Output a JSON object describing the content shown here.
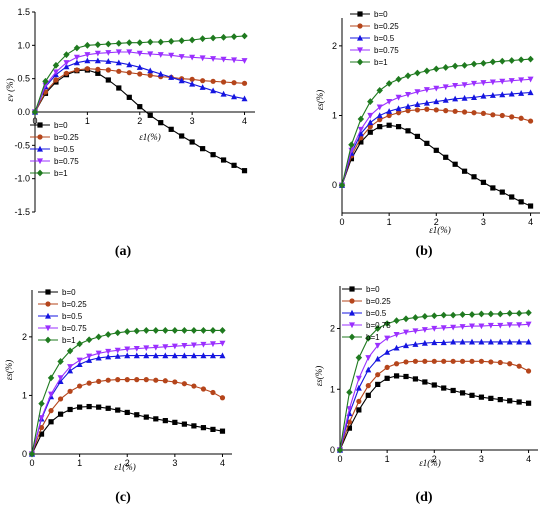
{
  "series_colors": [
    "#000000",
    "#b5451b",
    "#1515e0",
    "#9b30ff",
    "#1f7a1f"
  ],
  "series_markers": [
    "square",
    "circle",
    "triangle-up",
    "triangle-down",
    "diamond"
  ],
  "chart_data": [
    {
      "panel": "(a)",
      "type": "line",
      "xlabel": "ε1(%)",
      "ylabel": "εv (%)",
      "xlim": [
        0,
        4.2
      ],
      "ylim": [
        -1.5,
        1.5
      ],
      "xticks": [
        "0",
        "1",
        "2",
        "3",
        "4"
      ],
      "yticks": [
        "1.5",
        "1.0",
        "0.5",
        "0.0",
        "-0.5",
        "-1.0",
        "-1.5"
      ],
      "legend_position": "lower-left",
      "series": [
        {
          "name": "b=0",
          "x": [
            0,
            0.2,
            0.4,
            0.6,
            0.8,
            1.0,
            1.2,
            1.4,
            1.6,
            1.8,
            2.0,
            2.2,
            2.4,
            2.6,
            2.8,
            3.0,
            3.2,
            3.4,
            3.6,
            3.8,
            4.0
          ],
          "y": [
            0,
            0.28,
            0.45,
            0.56,
            0.62,
            0.63,
            0.58,
            0.48,
            0.36,
            0.22,
            0.08,
            -0.05,
            -0.16,
            -0.26,
            -0.36,
            -0.45,
            -0.55,
            -0.64,
            -0.72,
            -0.8,
            -0.88
          ]
        },
        {
          "name": "b=0.25",
          "x": [
            0,
            0.2,
            0.4,
            0.6,
            0.8,
            1.0,
            1.2,
            1.4,
            1.6,
            1.8,
            2.0,
            2.2,
            2.4,
            2.6,
            2.8,
            3.0,
            3.2,
            3.4,
            3.6,
            3.8,
            4.0
          ],
          "y": [
            0,
            0.3,
            0.48,
            0.58,
            0.63,
            0.65,
            0.64,
            0.63,
            0.61,
            0.59,
            0.57,
            0.55,
            0.53,
            0.52,
            0.5,
            0.49,
            0.47,
            0.46,
            0.45,
            0.44,
            0.43
          ]
        },
        {
          "name": "b=0.5",
          "x": [
            0,
            0.2,
            0.4,
            0.6,
            0.8,
            1.0,
            1.2,
            1.4,
            1.6,
            1.8,
            2.0,
            2.2,
            2.4,
            2.6,
            2.8,
            3.0,
            3.2,
            3.4,
            3.6,
            3.8,
            4.0
          ],
          "y": [
            0,
            0.38,
            0.56,
            0.68,
            0.74,
            0.77,
            0.77,
            0.76,
            0.74,
            0.71,
            0.67,
            0.62,
            0.57,
            0.52,
            0.47,
            0.42,
            0.37,
            0.32,
            0.27,
            0.23,
            0.2
          ]
        },
        {
          "name": "b=0.75",
          "x": [
            0,
            0.2,
            0.4,
            0.6,
            0.8,
            1.0,
            1.2,
            1.4,
            1.6,
            1.8,
            2.0,
            2.2,
            2.4,
            2.6,
            2.8,
            3.0,
            3.2,
            3.4,
            3.6,
            3.8,
            4.0
          ],
          "y": [
            0,
            0.4,
            0.6,
            0.74,
            0.82,
            0.86,
            0.88,
            0.89,
            0.9,
            0.9,
            0.88,
            0.87,
            0.86,
            0.85,
            0.83,
            0.82,
            0.81,
            0.8,
            0.79,
            0.78,
            0.77
          ]
        },
        {
          "name": "b=1",
          "x": [
            0,
            0.2,
            0.4,
            0.6,
            0.8,
            1.0,
            1.2,
            1.4,
            1.6,
            1.8,
            2.0,
            2.2,
            2.4,
            2.6,
            2.8,
            3.0,
            3.2,
            3.4,
            3.6,
            3.8,
            4.0
          ],
          "y": [
            0,
            0.46,
            0.7,
            0.86,
            0.96,
            1.0,
            1.01,
            1.02,
            1.03,
            1.04,
            1.04,
            1.05,
            1.05,
            1.06,
            1.07,
            1.08,
            1.1,
            1.11,
            1.12,
            1.13,
            1.14
          ]
        }
      ]
    },
    {
      "panel": "(b)",
      "type": "line",
      "xlabel": "ε1(%)",
      "ylabel": "εs(%)",
      "xlim": [
        0,
        4.2
      ],
      "ylim": [
        -0.4,
        2.4
      ],
      "xticks": [
        "0",
        "1",
        "2",
        "3",
        "4"
      ],
      "yticks": [
        "0",
        "1",
        "2"
      ],
      "legend_position": "top-left",
      "series": [
        {
          "name": "b=0",
          "x": [
            0,
            0.2,
            0.4,
            0.6,
            0.8,
            1.0,
            1.2,
            1.4,
            1.6,
            1.8,
            2.0,
            2.2,
            2.4,
            2.6,
            2.8,
            3.0,
            3.2,
            3.4,
            3.6,
            3.8,
            4.0
          ],
          "y": [
            0,
            0.38,
            0.62,
            0.76,
            0.84,
            0.86,
            0.84,
            0.78,
            0.7,
            0.6,
            0.5,
            0.4,
            0.3,
            0.2,
            0.12,
            0.04,
            -0.04,
            -0.1,
            -0.17,
            -0.24,
            -0.3
          ]
        },
        {
          "name": "b=0.25",
          "x": [
            0,
            0.2,
            0.4,
            0.6,
            0.8,
            1.0,
            1.2,
            1.4,
            1.6,
            1.8,
            2.0,
            2.2,
            2.4,
            2.6,
            2.8,
            3.0,
            3.2,
            3.4,
            3.6,
            3.8,
            4.0
          ],
          "y": [
            0,
            0.42,
            0.68,
            0.84,
            0.94,
            1.0,
            1.04,
            1.07,
            1.08,
            1.09,
            1.08,
            1.07,
            1.06,
            1.05,
            1.04,
            1.03,
            1.01,
            1.0,
            0.98,
            0.96,
            0.92
          ]
        },
        {
          "name": "b=0.5",
          "x": [
            0,
            0.2,
            0.4,
            0.6,
            0.8,
            1.0,
            1.2,
            1.4,
            1.6,
            1.8,
            2.0,
            2.2,
            2.4,
            2.6,
            2.8,
            3.0,
            3.2,
            3.4,
            3.6,
            3.8,
            4.0
          ],
          "y": [
            0,
            0.46,
            0.74,
            0.9,
            1.0,
            1.06,
            1.1,
            1.13,
            1.16,
            1.18,
            1.2,
            1.22,
            1.24,
            1.25,
            1.26,
            1.28,
            1.29,
            1.3,
            1.31,
            1.32,
            1.33
          ]
        },
        {
          "name": "b=0.75",
          "x": [
            0,
            0.2,
            0.4,
            0.6,
            0.8,
            1.0,
            1.2,
            1.4,
            1.6,
            1.8,
            2.0,
            2.2,
            2.4,
            2.6,
            2.8,
            3.0,
            3.2,
            3.4,
            3.6,
            3.8,
            4.0
          ],
          "y": [
            0,
            0.5,
            0.8,
            1.0,
            1.12,
            1.2,
            1.26,
            1.3,
            1.34,
            1.37,
            1.39,
            1.41,
            1.43,
            1.44,
            1.46,
            1.47,
            1.48,
            1.49,
            1.5,
            1.51,
            1.52
          ]
        },
        {
          "name": "b=1",
          "x": [
            0,
            0.2,
            0.4,
            0.6,
            0.8,
            1.0,
            1.2,
            1.4,
            1.6,
            1.8,
            2.0,
            2.2,
            2.4,
            2.6,
            2.8,
            3.0,
            3.2,
            3.4,
            3.6,
            3.8,
            4.0
          ],
          "y": [
            0,
            0.58,
            0.95,
            1.2,
            1.36,
            1.46,
            1.52,
            1.57,
            1.61,
            1.64,
            1.67,
            1.69,
            1.71,
            1.72,
            1.74,
            1.75,
            1.77,
            1.78,
            1.79,
            1.8,
            1.81
          ]
        }
      ]
    },
    {
      "panel": "(c)",
      "type": "line",
      "xlabel": "ε1(%)",
      "ylabel": "εs(%)",
      "xlim": [
        0,
        4.2
      ],
      "ylim": [
        0,
        2.8
      ],
      "xticks": [
        "0",
        "1",
        "2",
        "3",
        "4"
      ],
      "yticks": [
        "0",
        "1",
        "2"
      ],
      "legend_position": "top-left",
      "series": [
        {
          "name": "b=0",
          "x": [
            0,
            0.2,
            0.4,
            0.6,
            0.8,
            1.0,
            1.2,
            1.4,
            1.6,
            1.8,
            2.0,
            2.2,
            2.4,
            2.6,
            2.8,
            3.0,
            3.2,
            3.4,
            3.6,
            3.8,
            4.0
          ],
          "y": [
            0,
            0.34,
            0.55,
            0.68,
            0.76,
            0.8,
            0.81,
            0.8,
            0.78,
            0.75,
            0.71,
            0.67,
            0.63,
            0.6,
            0.57,
            0.54,
            0.51,
            0.48,
            0.45,
            0.42,
            0.39
          ]
        },
        {
          "name": "b=0.25",
          "x": [
            0,
            0.2,
            0.4,
            0.6,
            0.8,
            1.0,
            1.2,
            1.4,
            1.6,
            1.8,
            2.0,
            2.2,
            2.4,
            2.6,
            2.8,
            3.0,
            3.2,
            3.4,
            3.6,
            3.8,
            4.0
          ],
          "y": [
            0,
            0.45,
            0.74,
            0.94,
            1.07,
            1.16,
            1.21,
            1.24,
            1.26,
            1.27,
            1.27,
            1.27,
            1.27,
            1.26,
            1.25,
            1.23,
            1.2,
            1.16,
            1.11,
            1.05,
            0.96
          ]
        },
        {
          "name": "b=0.5",
          "x": [
            0,
            0.2,
            0.4,
            0.6,
            0.8,
            1.0,
            1.2,
            1.4,
            1.6,
            1.8,
            2.0,
            2.2,
            2.4,
            2.6,
            2.8,
            3.0,
            3.2,
            3.4,
            3.6,
            3.8,
            4.0
          ],
          "y": [
            0,
            0.6,
            0.98,
            1.24,
            1.42,
            1.53,
            1.6,
            1.64,
            1.66,
            1.67,
            1.68,
            1.68,
            1.68,
            1.68,
            1.68,
            1.68,
            1.68,
            1.68,
            1.68,
            1.68,
            1.68
          ]
        },
        {
          "name": "b=0.75",
          "x": [
            0,
            0.2,
            0.4,
            0.6,
            0.8,
            1.0,
            1.2,
            1.4,
            1.6,
            1.8,
            2.0,
            2.2,
            2.4,
            2.6,
            2.8,
            3.0,
            3.2,
            3.4,
            3.6,
            3.8,
            4.0
          ],
          "y": [
            0,
            0.62,
            1.02,
            1.3,
            1.49,
            1.6,
            1.67,
            1.72,
            1.75,
            1.77,
            1.79,
            1.8,
            1.81,
            1.82,
            1.83,
            1.84,
            1.85,
            1.86,
            1.87,
            1.88,
            1.89
          ]
        },
        {
          "name": "b=1",
          "x": [
            0,
            0.2,
            0.4,
            0.6,
            0.8,
            1.0,
            1.2,
            1.4,
            1.6,
            1.8,
            2.0,
            2.2,
            2.4,
            2.6,
            2.8,
            3.0,
            3.2,
            3.4,
            3.6,
            3.8,
            4.0
          ],
          "y": [
            0,
            0.86,
            1.3,
            1.58,
            1.76,
            1.88,
            1.95,
            2.0,
            2.04,
            2.07,
            2.09,
            2.1,
            2.11,
            2.11,
            2.11,
            2.11,
            2.11,
            2.11,
            2.11,
            2.11,
            2.11
          ]
        }
      ]
    },
    {
      "panel": "(d)",
      "type": "line",
      "xlabel": "ε1(%)",
      "ylabel": "εs(%)",
      "xlim": [
        0,
        4.2
      ],
      "ylim": [
        0,
        2.7
      ],
      "xticks": [
        "0",
        "1",
        "2",
        "3",
        "4"
      ],
      "yticks": [
        "0",
        "1",
        "2"
      ],
      "legend_position": "top-left",
      "series": [
        {
          "name": "b=0",
          "x": [
            0,
            0.2,
            0.4,
            0.6,
            0.8,
            1.0,
            1.2,
            1.4,
            1.6,
            1.8,
            2.0,
            2.2,
            2.4,
            2.6,
            2.8,
            3.0,
            3.2,
            3.4,
            3.6,
            3.8,
            4.0
          ],
          "y": [
            0,
            0.36,
            0.66,
            0.9,
            1.08,
            1.18,
            1.22,
            1.21,
            1.17,
            1.12,
            1.07,
            1.02,
            0.98,
            0.94,
            0.9,
            0.87,
            0.85,
            0.83,
            0.81,
            0.79,
            0.77
          ]
        },
        {
          "name": "b=0.25",
          "x": [
            0,
            0.2,
            0.4,
            0.6,
            0.8,
            1.0,
            1.2,
            1.4,
            1.6,
            1.8,
            2.0,
            2.2,
            2.4,
            2.6,
            2.8,
            3.0,
            3.2,
            3.4,
            3.6,
            3.8,
            4.0
          ],
          "y": [
            0,
            0.46,
            0.8,
            1.06,
            1.24,
            1.36,
            1.42,
            1.45,
            1.46,
            1.46,
            1.46,
            1.46,
            1.46,
            1.46,
            1.46,
            1.46,
            1.45,
            1.44,
            1.42,
            1.38,
            1.3
          ]
        },
        {
          "name": "b=0.5",
          "x": [
            0,
            0.2,
            0.4,
            0.6,
            0.8,
            1.0,
            1.2,
            1.4,
            1.6,
            1.8,
            2.0,
            2.2,
            2.4,
            2.6,
            2.8,
            3.0,
            3.2,
            3.4,
            3.6,
            3.8,
            4.0
          ],
          "y": [
            0,
            0.6,
            1.02,
            1.32,
            1.5,
            1.61,
            1.68,
            1.72,
            1.74,
            1.76,
            1.77,
            1.77,
            1.78,
            1.78,
            1.78,
            1.78,
            1.78,
            1.78,
            1.78,
            1.78,
            1.78
          ]
        },
        {
          "name": "b=0.75",
          "x": [
            0,
            0.2,
            0.4,
            0.6,
            0.8,
            1.0,
            1.2,
            1.4,
            1.6,
            1.8,
            2.0,
            2.2,
            2.4,
            2.6,
            2.8,
            3.0,
            3.2,
            3.4,
            3.6,
            3.8,
            4.0
          ],
          "y": [
            0,
            0.68,
            1.18,
            1.52,
            1.72,
            1.84,
            1.9,
            1.94,
            1.96,
            1.98,
            2.0,
            2.01,
            2.02,
            2.03,
            2.04,
            2.04,
            2.05,
            2.05,
            2.06,
            2.06,
            2.07
          ]
        },
        {
          "name": "b=1",
          "x": [
            0,
            0.2,
            0.4,
            0.6,
            0.8,
            1.0,
            1.2,
            1.4,
            1.6,
            1.8,
            2.0,
            2.2,
            2.4,
            2.6,
            2.8,
            3.0,
            3.2,
            3.4,
            3.6,
            3.8,
            4.0
          ],
          "y": [
            0,
            0.95,
            1.52,
            1.84,
            2.0,
            2.08,
            2.13,
            2.16,
            2.18,
            2.2,
            2.21,
            2.22,
            2.22,
            2.23,
            2.23,
            2.24,
            2.24,
            2.24,
            2.25,
            2.25,
            2.26
          ]
        }
      ]
    }
  ]
}
